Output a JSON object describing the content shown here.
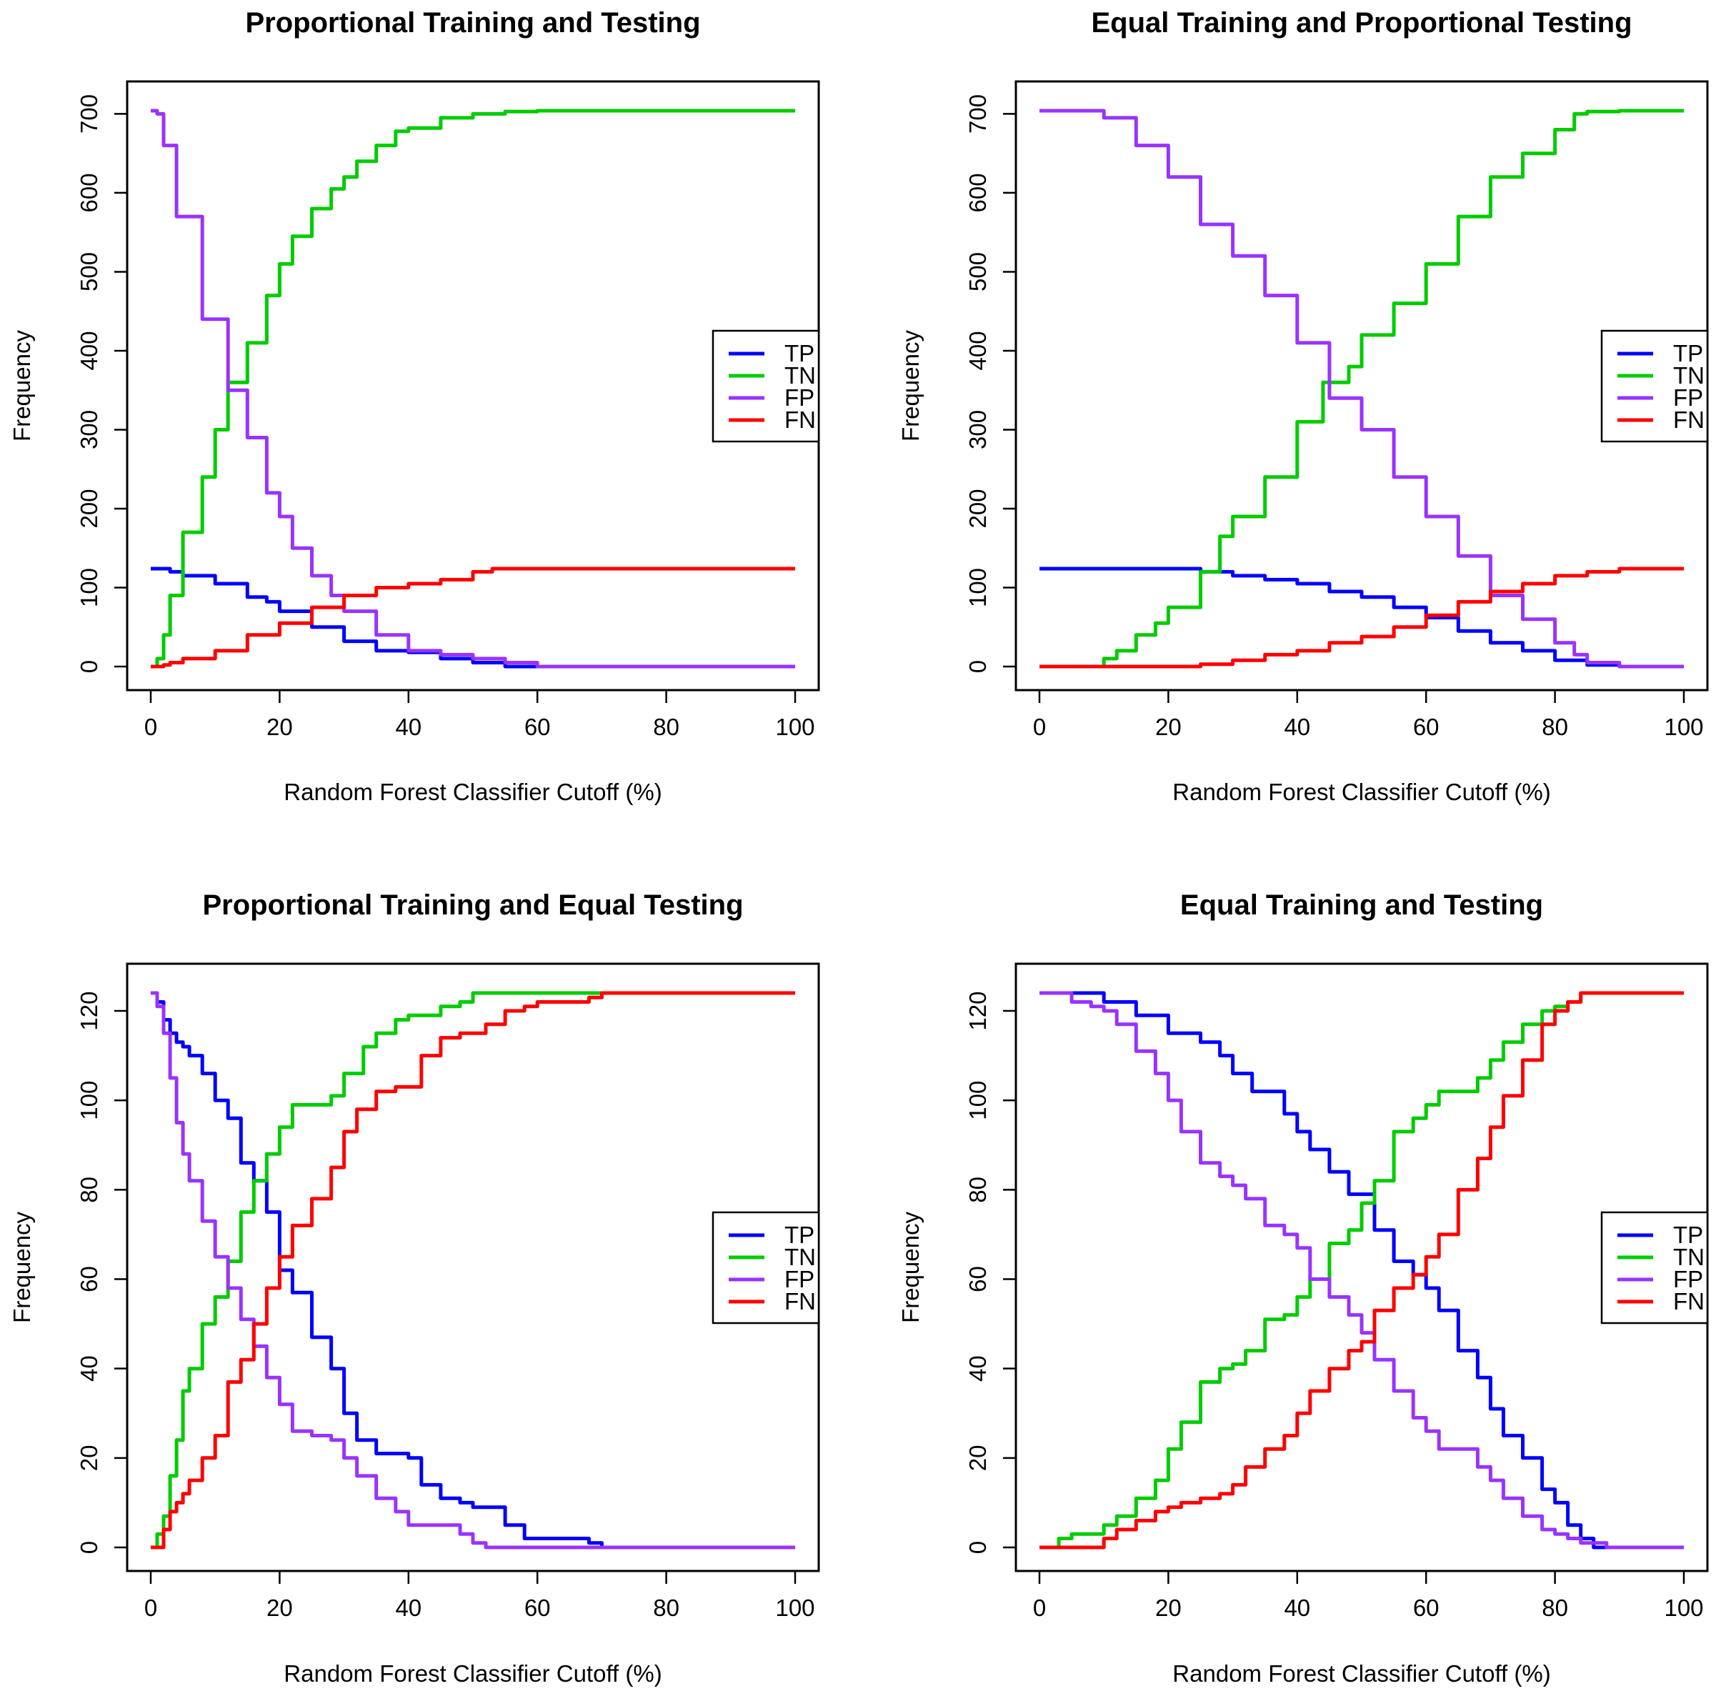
{
  "chart_data": [
    {
      "type": "line",
      "title": "Proportional Training and Testing",
      "xlabel": "Random Forest Classifier Cutoff (%)",
      "ylabel": "Frequency",
      "xlim": [
        0,
        100
      ],
      "ylim": [
        0,
        704
      ],
      "xticks": [
        0,
        20,
        40,
        60,
        80,
        100
      ],
      "yticks": [
        0,
        100,
        200,
        300,
        400,
        500,
        600,
        700
      ],
      "legend_position": "right",
      "series": [
        {
          "name": "TP",
          "color": "#0000ff",
          "x": [
            0,
            2,
            3,
            5,
            10,
            15,
            18,
            20,
            25,
            30,
            35,
            40,
            45,
            50,
            55,
            60,
            100
          ],
          "y": [
            124,
            124,
            120,
            115,
            105,
            88,
            82,
            70,
            50,
            32,
            20,
            18,
            10,
            5,
            0,
            0,
            0
          ]
        },
        {
          "name": "TN",
          "color": "#00cc00",
          "x": [
            0,
            1,
            2,
            3,
            5,
            8,
            10,
            12,
            15,
            18,
            20,
            22,
            25,
            28,
            30,
            32,
            35,
            38,
            40,
            45,
            50,
            55,
            60,
            63,
            100
          ],
          "y": [
            0,
            10,
            40,
            90,
            170,
            240,
            300,
            360,
            410,
            470,
            510,
            545,
            580,
            605,
            620,
            640,
            660,
            678,
            682,
            695,
            700,
            703,
            704,
            704,
            704
          ]
        },
        {
          "name": "FP",
          "color": "#9933ff",
          "x": [
            0,
            0.5,
            1,
            2,
            4,
            8,
            12,
            15,
            18,
            20,
            22,
            25,
            28,
            30,
            35,
            40,
            45,
            50,
            55,
            60,
            100
          ],
          "y": [
            704,
            704,
            700,
            660,
            570,
            440,
            350,
            290,
            220,
            190,
            150,
            115,
            90,
            70,
            40,
            20,
            15,
            10,
            5,
            0,
            0
          ]
        },
        {
          "name": "FN",
          "color": "#ff0000",
          "x": [
            0,
            1,
            2,
            3,
            5,
            10,
            15,
            20,
            25,
            30,
            35,
            40,
            45,
            50,
            53,
            100
          ],
          "y": [
            0,
            0,
            2,
            5,
            10,
            20,
            40,
            55,
            75,
            90,
            100,
            105,
            110,
            120,
            124,
            124
          ]
        }
      ]
    },
    {
      "type": "line",
      "title": "Equal Training and Proportional Testing",
      "xlabel": "Random Forest Classifier Cutoff (%)",
      "ylabel": "Frequency",
      "xlim": [
        0,
        100
      ],
      "ylim": [
        0,
        704
      ],
      "xticks": [
        0,
        20,
        40,
        60,
        80,
        100
      ],
      "yticks": [
        0,
        100,
        200,
        300,
        400,
        500,
        600,
        700
      ],
      "legend_position": "right",
      "series": [
        {
          "name": "TP",
          "color": "#0000ff",
          "x": [
            0,
            20,
            25,
            30,
            35,
            40,
            45,
            50,
            55,
            60,
            65,
            70,
            75,
            80,
            85,
            90,
            100
          ],
          "y": [
            124,
            124,
            120,
            115,
            110,
            105,
            95,
            88,
            75,
            62,
            45,
            30,
            20,
            8,
            2,
            0,
            0
          ]
        },
        {
          "name": "TN",
          "color": "#00cc00",
          "x": [
            0,
            5,
            10,
            12,
            15,
            18,
            20,
            25,
            28,
            30,
            35,
            40,
            44,
            48,
            50,
            55,
            60,
            65,
            70,
            75,
            80,
            83,
            85,
            90,
            100
          ],
          "y": [
            0,
            0,
            10,
            20,
            40,
            55,
            75,
            120,
            165,
            190,
            240,
            310,
            360,
            380,
            420,
            460,
            510,
            570,
            620,
            650,
            680,
            700,
            703,
            704,
            704
          ]
        },
        {
          "name": "FP",
          "color": "#9933ff",
          "x": [
            0,
            5,
            10,
            15,
            20,
            25,
            30,
            35,
            40,
            45,
            50,
            55,
            60,
            65,
            70,
            75,
            80,
            83,
            85,
            90,
            100
          ],
          "y": [
            704,
            704,
            695,
            660,
            620,
            560,
            520,
            470,
            410,
            340,
            300,
            240,
            190,
            140,
            90,
            60,
            30,
            15,
            5,
            0,
            0
          ]
        },
        {
          "name": "FN",
          "color": "#ff0000",
          "x": [
            0,
            20,
            25,
            30,
            35,
            40,
            45,
            50,
            55,
            60,
            65,
            70,
            75,
            80,
            85,
            90,
            100
          ],
          "y": [
            0,
            0,
            3,
            8,
            15,
            20,
            30,
            38,
            50,
            65,
            82,
            95,
            105,
            115,
            120,
            124,
            124
          ]
        }
      ]
    },
    {
      "type": "line",
      "title": "Proportional Training and Equal Testing",
      "xlabel": "Random Forest Classifier Cutoff (%)",
      "ylabel": "Frequency",
      "xlim": [
        0,
        100
      ],
      "ylim": [
        0,
        124
      ],
      "xticks": [
        0,
        20,
        40,
        60,
        80,
        100
      ],
      "yticks": [
        0,
        20,
        40,
        60,
        80,
        100,
        120
      ],
      "legend_position": "right",
      "series": [
        {
          "name": "TP",
          "color": "#0000ff",
          "x": [
            0,
            1,
            2,
            3,
            4,
            5,
            6,
            8,
            10,
            12,
            14,
            16,
            18,
            20,
            22,
            25,
            28,
            30,
            32,
            35,
            38,
            40,
            42,
            45,
            48,
            50,
            52,
            55,
            58,
            60,
            65,
            68,
            70,
            100
          ],
          "y": [
            124,
            122,
            118,
            115,
            113,
            112,
            110,
            106,
            100,
            96,
            86,
            82,
            75,
            62,
            57,
            47,
            40,
            30,
            24,
            21,
            21,
            20,
            14,
            11,
            10,
            9,
            9,
            5,
            2,
            2,
            2,
            1,
            0,
            0
          ]
        },
        {
          "name": "TN",
          "color": "#00cc00",
          "x": [
            0,
            1,
            2,
            3,
            4,
            5,
            6,
            8,
            10,
            12,
            14,
            16,
            18,
            20,
            22,
            25,
            28,
            30,
            33,
            35,
            38,
            40,
            45,
            48,
            50,
            52,
            55,
            60,
            65,
            70,
            100
          ],
          "y": [
            0,
            3,
            7,
            16,
            24,
            35,
            40,
            50,
            56,
            64,
            75,
            82,
            88,
            94,
            99,
            99,
            101,
            106,
            112,
            115,
            118,
            119,
            121,
            122,
            124,
            124,
            124,
            124,
            124,
            124,
            124
          ]
        },
        {
          "name": "FP",
          "color": "#9933ff",
          "x": [
            0,
            1,
            2,
            3,
            4,
            5,
            6,
            8,
            10,
            12,
            14,
            16,
            18,
            20,
            22,
            25,
            28,
            30,
            32,
            35,
            38,
            40,
            42,
            45,
            48,
            50,
            52,
            55,
            60,
            100
          ],
          "y": [
            124,
            121,
            115,
            105,
            95,
            88,
            82,
            73,
            65,
            58,
            51,
            45,
            38,
            32,
            26,
            25,
            24,
            20,
            16,
            11,
            8,
            5,
            5,
            5,
            3,
            1,
            0,
            0,
            0,
            0
          ]
        },
        {
          "name": "FN",
          "color": "#ff0000",
          "x": [
            0,
            1,
            2,
            3,
            4,
            5,
            6,
            8,
            10,
            12,
            14,
            16,
            18,
            20,
            22,
            25,
            28,
            30,
            32,
            35,
            38,
            40,
            42,
            45,
            48,
            50,
            52,
            55,
            58,
            60,
            65,
            68,
            70,
            100
          ],
          "y": [
            0,
            0,
            4,
            8,
            10,
            12,
            15,
            20,
            25,
            37,
            42,
            50,
            58,
            65,
            72,
            78,
            85,
            93,
            98,
            102,
            103,
            103,
            110,
            114,
            115,
            115,
            117,
            120,
            121,
            122,
            122,
            123,
            124,
            124
          ]
        }
      ]
    },
    {
      "type": "line",
      "title": "Equal Training and Testing",
      "xlabel": "Random Forest Classifier Cutoff (%)",
      "ylabel": "Frequency",
      "xlim": [
        0,
        100
      ],
      "ylim": [
        0,
        124
      ],
      "xticks": [
        0,
        20,
        40,
        60,
        80,
        100
      ],
      "yticks": [
        0,
        20,
        40,
        60,
        80,
        100,
        120
      ],
      "legend_position": "right",
      "series": [
        {
          "name": "TP",
          "color": "#0000ff",
          "x": [
            0,
            7,
            10,
            15,
            20,
            25,
            28,
            30,
            33,
            35,
            38,
            40,
            42,
            45,
            48,
            50,
            52,
            55,
            58,
            60,
            62,
            65,
            68,
            70,
            72,
            75,
            78,
            80,
            82,
            84,
            86,
            100
          ],
          "y": [
            124,
            124,
            122,
            119,
            115,
            113,
            110,
            106,
            102,
            102,
            97,
            93,
            89,
            84,
            79,
            79,
            71,
            64,
            61,
            58,
            53,
            44,
            38,
            31,
            25,
            20,
            13,
            10,
            5,
            2,
            0,
            0
          ]
        },
        {
          "name": "TN",
          "color": "#00cc00",
          "x": [
            0,
            2,
            3,
            5,
            8,
            10,
            12,
            15,
            18,
            20,
            22,
            25,
            28,
            30,
            32,
            35,
            38,
            40,
            42,
            45,
            48,
            50,
            52,
            55,
            58,
            60,
            62,
            65,
            68,
            70,
            72,
            75,
            78,
            80,
            82,
            84,
            86,
            100
          ],
          "y": [
            0,
            0,
            2,
            3,
            3,
            5,
            7,
            11,
            15,
            22,
            28,
            37,
            40,
            41,
            44,
            51,
            52,
            56,
            60,
            68,
            71,
            77,
            82,
            93,
            96,
            99,
            102,
            102,
            105,
            109,
            113,
            117,
            120,
            121,
            122,
            124,
            124,
            124
          ]
        },
        {
          "name": "FP",
          "color": "#9933ff",
          "x": [
            0,
            2,
            5,
            8,
            10,
            12,
            15,
            18,
            20,
            22,
            25,
            28,
            30,
            32,
            35,
            38,
            40,
            42,
            45,
            48,
            50,
            52,
            55,
            58,
            60,
            62,
            65,
            68,
            70,
            72,
            75,
            78,
            80,
            82,
            84,
            86,
            88,
            100
          ],
          "y": [
            124,
            124,
            122,
            121,
            120,
            117,
            111,
            106,
            100,
            93,
            86,
            83,
            81,
            78,
            72,
            70,
            67,
            60,
            56,
            52,
            48,
            42,
            35,
            29,
            26,
            22,
            22,
            18,
            15,
            11,
            7,
            4,
            3,
            2,
            1,
            1,
            0,
            0
          ]
        },
        {
          "name": "FN",
          "color": "#ff0000",
          "x": [
            0,
            5,
            7,
            10,
            12,
            15,
            18,
            20,
            22,
            25,
            28,
            30,
            32,
            35,
            38,
            40,
            42,
            45,
            48,
            50,
            52,
            55,
            58,
            60,
            62,
            65,
            68,
            70,
            72,
            75,
            78,
            80,
            82,
            84,
            86,
            100
          ],
          "y": [
            0,
            0,
            0,
            2,
            4,
            6,
            8,
            9,
            10,
            11,
            12,
            14,
            18,
            22,
            25,
            30,
            35,
            40,
            44,
            46,
            53,
            58,
            61,
            65,
            70,
            80,
            87,
            94,
            101,
            109,
            117,
            120,
            122,
            124,
            124,
            124
          ]
        }
      ]
    }
  ]
}
